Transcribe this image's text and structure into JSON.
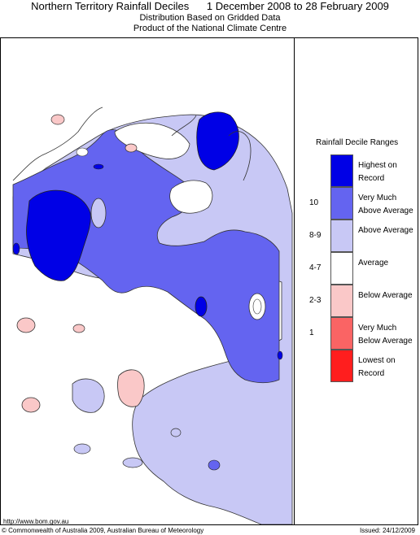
{
  "header": {
    "title": "Northern Territory Rainfall Deciles      1 December 2008 to 28 February 2009",
    "subtitle1": "Distribution Based on Gridded Data",
    "subtitle2": "Product of the National Climate Centre"
  },
  "legend": {
    "title": "Rainfall Decile Ranges",
    "items": [
      {
        "range": "",
        "label": "Highest on Record",
        "color": "#0000e6"
      },
      {
        "range": "10",
        "label": "Very Much Above Average",
        "color": "#6464f0"
      },
      {
        "range": "8-9",
        "label": "Above Average",
        "color": "#c8c8f5"
      },
      {
        "range": "4-7",
        "label": "Average",
        "color": "#ffffff"
      },
      {
        "range": "2-3",
        "label": "Below Average",
        "color": "#fac8c8"
      },
      {
        "range": "1",
        "label": "Very Much Below Average",
        "color": "#fa6464"
      },
      {
        "range": "",
        "label": "Lowest on Record",
        "color": "#ff1e1e"
      }
    ]
  },
  "footer": {
    "url": "http://www.bom.gov.au",
    "copyright": "© Commonwealth of Australia 2009, Australian Bureau of Meteorology",
    "issued": "Issued: 24/12/2009"
  }
}
